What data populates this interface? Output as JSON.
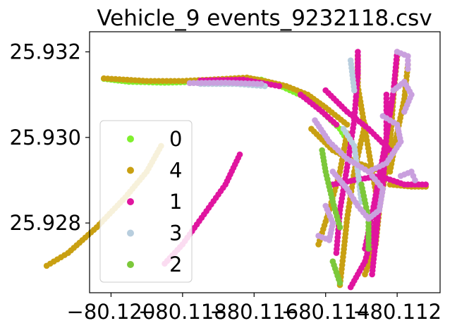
{
  "chart_data": {
    "type": "scatter",
    "title": "Vehicle_9 events_9232118.csv",
    "xlabel": "",
    "ylabel": "",
    "xlim": [
      -80.1206,
      -80.1108
    ],
    "ylim": [
      25.92637,
      25.93247
    ],
    "x_ticks": [
      {
        "value": -80.12,
        "label": "−80.120"
      },
      {
        "value": -80.118,
        "label": "−80.118"
      },
      {
        "value": -80.116,
        "label": "−80.116"
      },
      {
        "value": -80.114,
        "label": "−80.114"
      },
      {
        "value": -80.112,
        "label": "−80.112"
      }
    ],
    "y_ticks": [
      {
        "value": 25.928,
        "label": "25.928"
      },
      {
        "value": 25.93,
        "label": "25.930"
      },
      {
        "value": 25.932,
        "label": "25.932"
      }
    ],
    "grid": false,
    "legend_position": "center-left",
    "series": [
      {
        "name": "0",
        "color": "#80f02e",
        "paths": [
          [
            [
              -80.1202,
              25.93137
            ],
            [
              -80.1195,
              25.9313
            ],
            [
              -80.1185,
              25.93128
            ],
            [
              -80.1175,
              25.9313
            ],
            [
              -80.1165,
              25.93137
            ],
            [
              -80.1158,
              25.93135
            ],
            [
              -80.1152,
              25.93118
            ],
            [
              -80.1146,
              25.93095
            ],
            [
              -80.1141,
              25.9306
            ],
            [
              -80.1136,
              25.9302
            ],
            [
              -80.1133,
              25.9298
            ]
          ]
        ]
      },
      {
        "name": "4",
        "color": "#c9a012",
        "paths": [
          [
            [
              -80.1202,
              25.93138
            ],
            [
              -80.119,
              25.93132
            ],
            [
              -80.118,
              25.93132
            ],
            [
              -80.117,
              25.93136
            ],
            [
              -80.1162,
              25.9314
            ],
            [
              -80.1156,
              25.9313
            ],
            [
              -80.1151,
              25.9312
            ],
            [
              -80.1145,
              25.931
            ],
            [
              -80.114,
              25.9307
            ],
            [
              -80.1134,
              25.9303
            ]
          ],
          [
            [
              -80.1131,
              25.9319
            ],
            [
              -80.1131,
              25.9312
            ],
            [
              -80.1129,
              25.9302
            ],
            [
              -80.1127,
              25.9292
            ],
            [
              -80.1125,
              25.9283
            ],
            [
              -80.1126,
              25.9275
            ],
            [
              -80.1129,
              25.9268
            ]
          ],
          [
            [
              -80.112,
              25.9319
            ],
            [
              -80.1121,
              25.931
            ],
            [
              -80.1122,
              25.9298
            ],
            [
              -80.1124,
              25.9288
            ],
            [
              -80.1126,
              25.9279
            ],
            [
              -80.1128,
              25.9272
            ]
          ],
          [
            [
              -80.1117,
              25.9317
            ],
            [
              -80.1118,
              25.9309
            ],
            [
              -80.112,
              25.9301
            ],
            [
              -80.1122,
              25.9292
            ]
          ],
          [
            [
              -80.1218,
              25.927
            ],
            [
              -80.1212,
              25.9273
            ],
            [
              -80.1204,
              25.9279
            ],
            [
              -80.1196,
              25.9286
            ],
            [
              -80.119,
              25.9292
            ],
            [
              -80.1186,
              25.9298
            ]
          ],
          [
            [
              -80.1136,
              25.92655
            ],
            [
              -80.1135,
              25.9273
            ],
            [
              -80.1134,
              25.9281
            ],
            [
              -80.1132,
              25.9292
            ],
            [
              -80.1129,
              25.9303
            ]
          ],
          [
            [
              -80.1142,
              25.9275
            ],
            [
              -80.1139,
              25.9283
            ],
            [
              -80.1136,
              25.9292
            ],
            [
              -80.1134,
              25.9301
            ]
          ],
          [
            [
              -80.1122,
              25.9289
            ],
            [
              -80.1116,
              25.92885
            ],
            [
              -80.1112,
              25.92885
            ]
          ],
          [
            [
              -80.1144,
              25.9302
            ],
            [
              -80.1138,
              25.9297
            ],
            [
              -80.1131,
              25.9294
            ],
            [
              -80.1124,
              25.9292
            ]
          ]
        ]
      },
      {
        "name": "1",
        "color": "#e0159f",
        "paths": [
          [
            [
              -80.1175,
              25.93133
            ],
            [
              -80.1163,
              25.93135
            ],
            [
              -80.1153,
              25.9312
            ]
          ],
          [
            [
              -80.1147,
              25.931
            ],
            [
              -80.1141,
              25.9306
            ],
            [
              -80.1137,
              25.9303
            ]
          ],
          [
            [
              -80.1137,
              25.9273
            ],
            [
              -80.1136,
              25.9283
            ],
            [
              -80.1134,
              25.9293
            ],
            [
              -80.1132,
              25.9304
            ],
            [
              -80.1131,
              25.9315
            ],
            [
              -80.1131,
              25.932
            ]
          ],
          [
            [
              -80.112,
              25.932
            ],
            [
              -80.1121,
              25.9311
            ],
            [
              -80.1123,
              25.93
            ],
            [
              -80.1125,
              25.9291
            ],
            [
              -80.1127,
              25.9282
            ],
            [
              -80.1129,
              25.9274
            ]
          ],
          [
            [
              -80.1133,
              25.9265
            ],
            [
              -80.1129,
              25.9271
            ],
            [
              -80.1126,
              25.928
            ],
            [
              -80.1124,
              25.9289
            ],
            [
              -80.1123,
              25.93
            ],
            [
              -80.1123,
              25.931
            ]
          ],
          [
            [
              -80.1185,
              25.92705
            ],
            [
              -80.118,
              25.9275
            ],
            [
              -80.1174,
              25.9282
            ],
            [
              -80.1168,
              25.9289
            ],
            [
              -80.1164,
              25.9296
            ]
          ],
          [
            [
              -80.1138,
              25.9289
            ],
            [
              -80.1132,
              25.929
            ],
            [
              -80.1125,
              25.9291
            ],
            [
              -80.1118,
              25.9289
            ],
            [
              -80.1112,
              25.9289
            ]
          ],
          [
            [
              -80.114,
              25.9311
            ],
            [
              -80.1134,
              25.9306
            ],
            [
              -80.1128,
              25.9302
            ],
            [
              -80.1122,
              25.9297
            ]
          ],
          [
            [
              -80.1127,
              25.9268
            ],
            [
              -80.1126,
              25.9276
            ],
            [
              -80.1125,
              25.9285
            ]
          ]
        ]
      },
      {
        "name": "3",
        "color": "#b8cede",
        "paths": [
          [
            [
              -80.1175,
              25.93125
            ],
            [
              -80.1165,
              25.93125
            ],
            [
              -80.1157,
              25.9312
            ]
          ],
          [
            [
              -80.1135,
              25.9302
            ],
            [
              -80.1132,
              25.9298
            ],
            [
              -80.1131,
              25.9292
            ],
            [
              -80.113,
              25.9285
            ]
          ],
          [
            [
              -80.1133,
              25.9318
            ],
            [
              -80.1132,
              25.9311
            ]
          ]
        ]
      },
      {
        "name": "2",
        "color": "#7cc83a",
        "paths": [
          [
            [
              -80.1141,
              25.9297
            ],
            [
              -80.114,
              25.9292
            ],
            [
              -80.1138,
              25.9285
            ],
            [
              -80.1136,
              25.9279
            ]
          ],
          [
            [
              -80.113,
              25.9289
            ],
            [
              -80.1128,
              25.9281
            ],
            [
              -80.1128,
              25.9274
            ]
          ],
          [
            [
              -80.1136,
              25.9266
            ],
            [
              -80.1138,
              25.9271
            ]
          ]
        ]
      }
    ],
    "overlay_paths": [
      {
        "color": "#c9a0de",
        "points": [
          [
            -80.1143,
            25.9304
          ],
          [
            -80.1139,
            25.9299
          ],
          [
            -80.1134,
            25.9295
          ],
          [
            -80.1128,
            25.9292
          ],
          [
            -80.1123,
            25.9294
          ],
          [
            -80.1119,
            25.9299
          ],
          [
            -80.112,
            25.9303
          ],
          [
            -80.1124,
            25.9305
          ]
        ]
      },
      {
        "color": "#c9a0de",
        "points": [
          [
            -80.1138,
            25.9292
          ],
          [
            -80.1134,
            25.9288
          ],
          [
            -80.1131,
            25.9284
          ],
          [
            -80.1128,
            25.9281
          ],
          [
            -80.1125,
            25.9283
          ],
          [
            -80.1124,
            25.9288
          ],
          [
            -80.1127,
            25.9291
          ]
        ]
      },
      {
        "color": "#c9a0de",
        "points": [
          [
            -80.114,
            25.9284
          ],
          [
            -80.1138,
            25.928
          ],
          [
            -80.1139,
            25.9276
          ],
          [
            -80.1142,
            25.9277
          ]
        ]
      },
      {
        "color": "#c9a0de",
        "points": [
          [
            -80.1118,
            25.9306
          ],
          [
            -80.1116,
            25.931
          ],
          [
            -80.1118,
            25.9313
          ],
          [
            -80.1121,
            25.9311
          ]
        ]
      },
      {
        "color": "#c9a0de",
        "points": [
          [
            -80.112,
            25.932
          ],
          [
            -80.1117,
            25.9319
          ],
          [
            -80.1117,
            25.9316
          ]
        ]
      },
      {
        "color": "#c9a0de",
        "points": [
          [
            -80.1178,
            25.93127
          ],
          [
            -80.1168,
            25.93128
          ],
          [
            -80.1158,
            25.93125
          ]
        ]
      },
      {
        "color": "#c9a0de",
        "points": [
          [
            -80.1119,
            25.9291
          ],
          [
            -80.1116,
            25.9292
          ],
          [
            -80.1115,
            25.929
          ]
        ]
      }
    ]
  }
}
